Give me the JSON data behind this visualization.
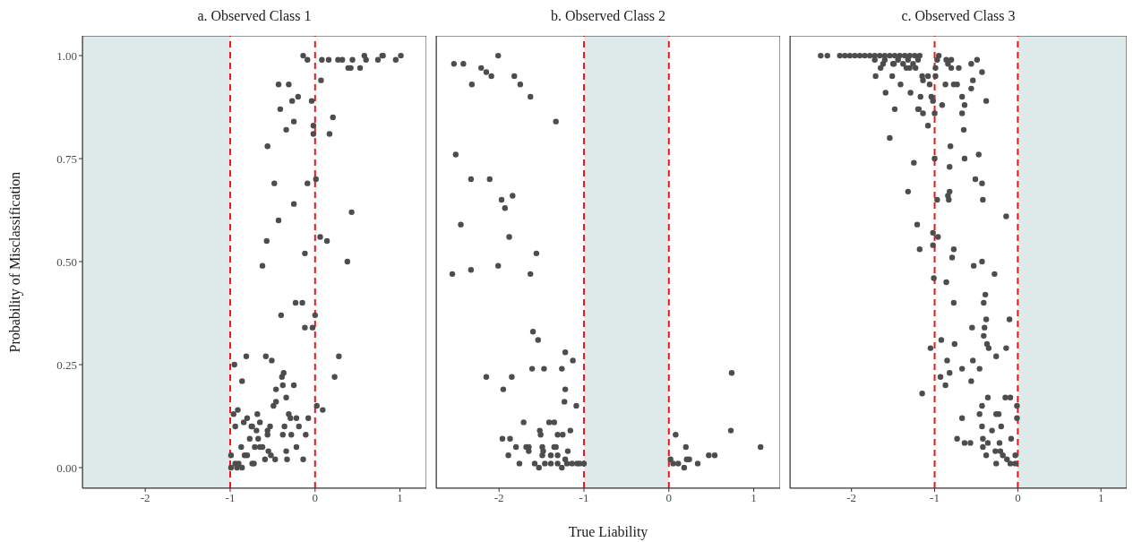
{
  "chart_data": [
    {
      "type": "scatter",
      "title": "a. Observed Class 1",
      "ylabel": "Probability of Misclassification",
      "color": "#4d4d4d",
      "marker": "circle",
      "tick_labels": "xy",
      "xlim": [
        -2.74,
        1.31
      ],
      "xticks": [
        -2,
        -1,
        0,
        1
      ],
      "ylim": [
        -0.05,
        1.048
      ],
      "yticks": [
        {
          "value": 0,
          "label": "0.00"
        },
        {
          "value": 0.25,
          "label": "0.25"
        },
        {
          "value": 0.5,
          "label": "0.50"
        },
        {
          "value": 0.75,
          "label": "0.75"
        },
        {
          "value": 1,
          "label": "1.00"
        }
      ],
      "bands": [
        {
          "axis": "x",
          "from": -2.74,
          "to": -1,
          "color": "#deeaea"
        }
      ],
      "ref_lines": [
        {
          "axis": "x",
          "value": -1,
          "color": "#e31a1c",
          "line_style": "dashed"
        },
        {
          "axis": "x",
          "value": 0,
          "color": "#e31a1c",
          "line_style": "dashed"
        }
      ],
      "x": [
        -0.14,
        -0.09,
        0.08,
        0.16,
        0.27,
        0.32,
        0.44,
        0.58,
        0.6,
        0.74,
        0.79,
        0.8,
        0.95,
        1.01,
        0.39,
        0.42,
        0.53,
        0.07,
        -0.43,
        -0.31,
        -0.27,
        -0.2,
        -0.04,
        -0.41,
        0.21,
        -0.25,
        -0.34,
        -0.02,
        -0.02,
        0.17,
        -0.56,
        -0.48,
        -0.09,
        0.01,
        -0.25,
        0.43,
        -0.43,
        -0.57,
        0.06,
        0.14,
        -0.12,
        0.38,
        -0.62,
        -0.23,
        -0.15,
        -0.4,
        0.0,
        -0.12,
        -0.03,
        -0.95,
        -0.81,
        -0.58,
        -0.51,
        0.28,
        0.23,
        -0.86,
        -0.37,
        -0.39,
        -0.38,
        -0.25,
        -0.46,
        -0.34,
        -0.46,
        -0.49,
        0.02,
        0.09,
        -0.91,
        -0.96,
        -0.68,
        -0.31,
        -0.29,
        -0.22,
        -0.08,
        -0.94,
        -0.84,
        -0.8,
        -0.75,
        -0.65,
        -0.53,
        -0.36,
        -0.19,
        -0.74,
        -0.56,
        -0.69,
        -0.38,
        -0.28,
        -0.11,
        -0.56,
        -0.67,
        -0.77,
        -0.62,
        -0.22,
        -0.87,
        -0.71,
        -0.65,
        -0.55,
        -0.34,
        -0.52,
        -0.83,
        -0.8,
        -0.99,
        -0.59,
        -0.47,
        -0.33,
        -0.14,
        -0.74,
        -0.72,
        -0.94,
        -0.9,
        -0.86,
        -0.99,
        -0.92
      ],
      "values": [
        1.0,
        0.99,
        0.99,
        0.99,
        0.99,
        0.99,
        0.99,
        1.0,
        0.99,
        0.99,
        1.0,
        1.0,
        0.99,
        1.0,
        0.97,
        0.97,
        0.97,
        0.94,
        0.93,
        0.93,
        0.89,
        0.9,
        0.89,
        0.87,
        0.85,
        0.84,
        0.82,
        0.83,
        0.81,
        0.81,
        0.78,
        0.69,
        0.69,
        0.7,
        0.64,
        0.62,
        0.6,
        0.55,
        0.56,
        0.55,
        0.52,
        0.5,
        0.49,
        0.4,
        0.4,
        0.37,
        0.37,
        0.34,
        0.34,
        0.25,
        0.27,
        0.27,
        0.26,
        0.27,
        0.22,
        0.21,
        0.23,
        0.22,
        0.2,
        0.2,
        0.19,
        0.17,
        0.16,
        0.15,
        0.15,
        0.14,
        0.14,
        0.13,
        0.13,
        0.13,
        0.12,
        0.12,
        0.12,
        0.1,
        0.11,
        0.12,
        0.1,
        0.11,
        0.1,
        0.1,
        0.1,
        0.1,
        0.09,
        0.09,
        0.08,
        0.08,
        0.08,
        0.08,
        0.07,
        0.07,
        0.05,
        0.05,
        0.05,
        0.05,
        0.05,
        0.04,
        0.04,
        0.03,
        0.03,
        0.03,
        0.03,
        0.02,
        0.02,
        0.02,
        0.02,
        0.01,
        0.01,
        0.01,
        0.01,
        0.0,
        0.0,
        0.0
      ]
    },
    {
      "type": "scatter",
      "title": "b. Observed Class 2",
      "xlabel": "True Liability",
      "color": "#4d4d4d",
      "marker": "circle",
      "tick_labels": "x",
      "xlim": [
        -2.74,
        1.31
      ],
      "xticks": [
        -2,
        -1,
        0,
        1
      ],
      "ylim": [
        -0.05,
        1.048
      ],
      "bands": [
        {
          "axis": "x",
          "from": -1,
          "to": 0,
          "color": "#deeaea"
        }
      ],
      "ref_lines": [
        {
          "axis": "x",
          "value": -1,
          "color": "#e31a1c",
          "line_style": "dashed"
        },
        {
          "axis": "x",
          "value": 0,
          "color": "#e31a1c",
          "line_style": "dashed"
        }
      ],
      "x": [
        -2.53,
        -2.42,
        -2.01,
        -2.21,
        -2.15,
        -2.09,
        -2.32,
        -1.82,
        -1.75,
        -1.63,
        -1.33,
        -2.51,
        -2.33,
        -2.11,
        -1.97,
        -1.84,
        -1.93,
        -2.45,
        -1.88,
        -1.56,
        -2.01,
        -2.55,
        -2.33,
        -1.63,
        -1.6,
        -1.54,
        -1.22,
        -1.13,
        -1.61,
        -1.47,
        -1.26,
        -2.15,
        -1.85,
        -1.95,
        -1.22,
        -1.23,
        -1.09,
        -1.71,
        -1.41,
        -1.35,
        -1.52,
        -1.51,
        -1.31,
        -1.25,
        -1.16,
        -1.96,
        -1.87,
        -1.8,
        -1.68,
        -1.65,
        -1.49,
        -1.48,
        -1.35,
        -1.33,
        -1.19,
        -1.65,
        -1.89,
        -1.49,
        -1.39,
        -1.31,
        -1.22,
        -1.76,
        -1.58,
        -1.53,
        -1.46,
        -1.39,
        -1.31,
        -1.26,
        -1.2,
        -1.14,
        -1.08,
        -1.05,
        -1.0,
        0.02,
        0.05,
        0.11,
        0.18,
        0.21,
        0.24,
        0.34,
        0.08,
        0.2,
        0.47,
        0.54,
        0.73,
        0.74,
        1.08
      ],
      "values": [
        0.98,
        0.98,
        1.0,
        0.97,
        0.96,
        0.95,
        0.93,
        0.95,
        0.93,
        0.9,
        0.84,
        0.76,
        0.7,
        0.7,
        0.65,
        0.66,
        0.63,
        0.59,
        0.56,
        0.52,
        0.49,
        0.47,
        0.48,
        0.47,
        0.33,
        0.31,
        0.28,
        0.26,
        0.24,
        0.24,
        0.24,
        0.22,
        0.22,
        0.19,
        0.19,
        0.16,
        0.15,
        0.11,
        0.11,
        0.11,
        0.09,
        0.08,
        0.08,
        0.08,
        0.09,
        0.07,
        0.07,
        0.05,
        0.05,
        0.05,
        0.05,
        0.04,
        0.05,
        0.05,
        0.04,
        0.04,
        0.03,
        0.03,
        0.03,
        0.03,
        0.02,
        0.01,
        0.01,
        0.0,
        0.01,
        0.01,
        0.01,
        0.0,
        0.01,
        0.01,
        0.01,
        0.01,
        0.01,
        0.02,
        0.01,
        0.01,
        0.0,
        0.02,
        0.02,
        0.01,
        0.08,
        0.05,
        0.03,
        0.03,
        0.09,
        0.23,
        0.05
      ]
    },
    {
      "type": "scatter",
      "title": "c. Observed Class 3",
      "color": "#4d4d4d",
      "marker": "circle",
      "tick_labels": "x",
      "xlim": [
        -2.74,
        1.31
      ],
      "xticks": [
        -2,
        -1,
        0,
        1
      ],
      "ylim": [
        -0.05,
        1.048
      ],
      "bands": [
        {
          "axis": "x",
          "from": 0,
          "to": 1.31,
          "color": "#deeaea"
        }
      ],
      "ref_lines": [
        {
          "axis": "x",
          "value": -1,
          "color": "#e31a1c",
          "line_style": "dashed"
        },
        {
          "axis": "x",
          "value": 0,
          "color": "#e31a1c",
          "line_style": "dashed"
        }
      ],
      "x": [
        -2.37,
        -2.29,
        -2.14,
        -2.08,
        -2.02,
        -1.96,
        -1.9,
        -1.84,
        -1.78,
        -1.72,
        -1.66,
        -1.6,
        -1.54,
        -1.48,
        -1.42,
        -1.36,
        -1.3,
        -1.24,
        -1.18,
        -1.72,
        -1.6,
        -1.5,
        -1.44,
        -1.38,
        -1.32,
        -1.26,
        -1.2,
        -1.62,
        -1.3,
        -0.95,
        -0.97,
        -1.65,
        -1.49,
        -1.34,
        -1.23,
        -0.99,
        -0.86,
        -0.84,
        -0.8,
        -0.8,
        -0.71,
        -0.56,
        -0.49,
        -0.43,
        -1.71,
        -1.51,
        -1.15,
        -1.08,
        -0.99,
        -1.14,
        -1.06,
        -1.41,
        -0.87,
        -0.77,
        -0.73,
        -0.54,
        -0.56,
        -1.59,
        -1.29,
        -1.17,
        -1.04,
        -1.02,
        -0.67,
        -0.38,
        -0.64,
        -0.91,
        -1.48,
        -1.2,
        -1.19,
        -1.14,
        -1.0,
        -0.67,
        -1.08,
        -0.65,
        -1.54,
        -0.81,
        -0.47,
        -1.0,
        -0.64,
        -1.25,
        -0.82,
        -0.51,
        -0.43,
        -1.32,
        -0.82,
        -0.84,
        -0.97,
        -0.42,
        -0.83,
        -0.14,
        -1.21,
        -1.02,
        -0.96,
        -1.18,
        -1.02,
        -0.77,
        -0.79,
        -0.43,
        -0.53,
        -0.28,
        -1.01,
        -0.86,
        -0.39,
        -0.41,
        -0.77,
        -0.38,
        -0.1,
        -0.55,
        -0.4,
        -0.41,
        -0.37,
        -0.35,
        -0.92,
        -0.76,
        -1.05,
        -0.14,
        -0.26,
        -0.85,
        -0.54,
        -0.67,
        -0.46,
        -0.82,
        -0.93,
        -0.87,
        -0.56,
        -1.15,
        -0.36,
        -0.15,
        -0.09,
        -0.01,
        -0.43,
        -0.46,
        -0.26,
        -0.23,
        -0.67,
        -0.01,
        -0.43,
        -0.2,
        -0.31,
        -0.73,
        -0.64,
        -0.57,
        -0.42,
        -0.42,
        -0.36,
        -0.22,
        -0.08,
        -0.38,
        -0.27,
        -0.21,
        -0.18,
        -0.13,
        -0.03,
        -0.26,
        -0.09,
        -0.03
      ],
      "values": [
        1.0,
        1.0,
        1.0,
        1.0,
        1.0,
        1.0,
        1.0,
        1.0,
        1.0,
        1.0,
        1.0,
        1.0,
        1.0,
        1.0,
        1.0,
        1.0,
        1.0,
        1.0,
        1.0,
        0.99,
        0.99,
        0.98,
        0.99,
        0.98,
        0.99,
        0.98,
        0.99,
        0.98,
        0.97,
        1.0,
        0.99,
        0.97,
        0.98,
        0.97,
        0.97,
        0.97,
        0.99,
        0.98,
        0.99,
        0.97,
        0.97,
        0.98,
        0.99,
        0.96,
        0.95,
        0.95,
        0.95,
        0.95,
        0.95,
        0.94,
        0.93,
        0.93,
        0.93,
        0.93,
        0.93,
        0.94,
        0.92,
        0.91,
        0.91,
        0.9,
        0.9,
        0.89,
        0.9,
        0.89,
        0.88,
        0.88,
        0.87,
        0.87,
        0.87,
        0.86,
        0.86,
        0.86,
        0.83,
        0.82,
        0.8,
        0.78,
        0.76,
        0.75,
        0.75,
        0.74,
        0.73,
        0.7,
        0.69,
        0.67,
        0.67,
        0.66,
        0.65,
        0.65,
        0.65,
        0.61,
        0.59,
        0.57,
        0.56,
        0.53,
        0.54,
        0.53,
        0.51,
        0.5,
        0.49,
        0.47,
        0.46,
        0.45,
        0.42,
        0.4,
        0.4,
        0.36,
        0.36,
        0.34,
        0.34,
        0.32,
        0.3,
        0.29,
        0.31,
        0.3,
        0.29,
        0.29,
        0.27,
        0.26,
        0.26,
        0.24,
        0.24,
        0.23,
        0.22,
        0.2,
        0.21,
        0.18,
        0.17,
        0.17,
        0.17,
        0.15,
        0.15,
        0.13,
        0.13,
        0.13,
        0.12,
        0.12,
        0.1,
        0.1,
        0.09,
        0.07,
        0.06,
        0.06,
        0.07,
        0.05,
        0.06,
        0.06,
        0.07,
        0.03,
        0.04,
        0.04,
        0.03,
        0.02,
        0.03,
        0.01,
        0.01,
        0.01
      ]
    }
  ]
}
